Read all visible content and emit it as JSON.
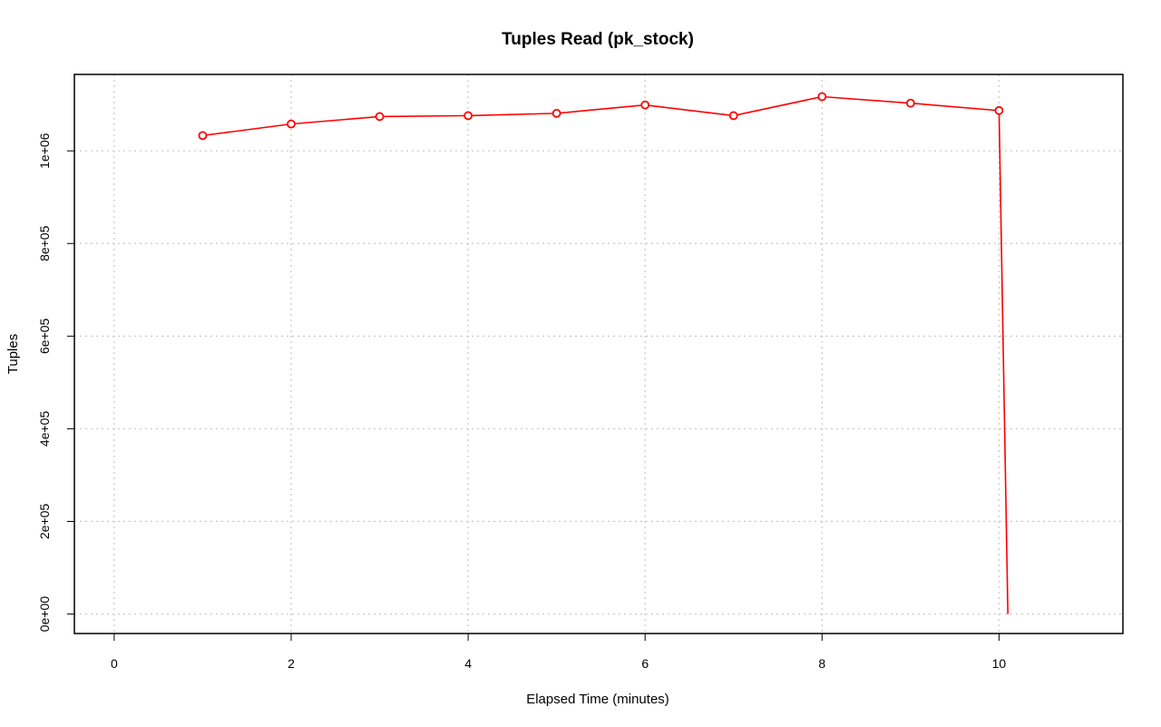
{
  "chart_data": {
    "type": "line",
    "title": "Tuples Read (pk_stock)",
    "xlabel": "Elapsed Time (minutes)",
    "ylabel": "Tuples",
    "xlim": [
      -0.45,
      11.4
    ],
    "ylim": [
      -42000,
      1165000
    ],
    "x_ticks": [
      0,
      2,
      4,
      6,
      8,
      10
    ],
    "x_tick_labels": [
      "0",
      "2",
      "4",
      "6",
      "8",
      "10"
    ],
    "y_ticks": [
      0,
      200000,
      400000,
      600000,
      800000,
      1000000
    ],
    "y_tick_labels": [
      "0e+00",
      "2e+05",
      "4e+05",
      "6e+05",
      "8e+05",
      "1e+06"
    ],
    "grid": true,
    "series": [
      {
        "color": "#ff0000",
        "x": [
          1,
          2,
          3,
          4,
          5,
          6,
          7,
          8,
          9,
          10,
          10.1
        ],
        "y": [
          1033000,
          1058000,
          1074000,
          1076000,
          1081000,
          1099000,
          1076000,
          1117000,
          1103000,
          1087000,
          0
        ],
        "markers": [
          true,
          true,
          true,
          true,
          true,
          true,
          true,
          true,
          true,
          true,
          false
        ]
      }
    ]
  }
}
